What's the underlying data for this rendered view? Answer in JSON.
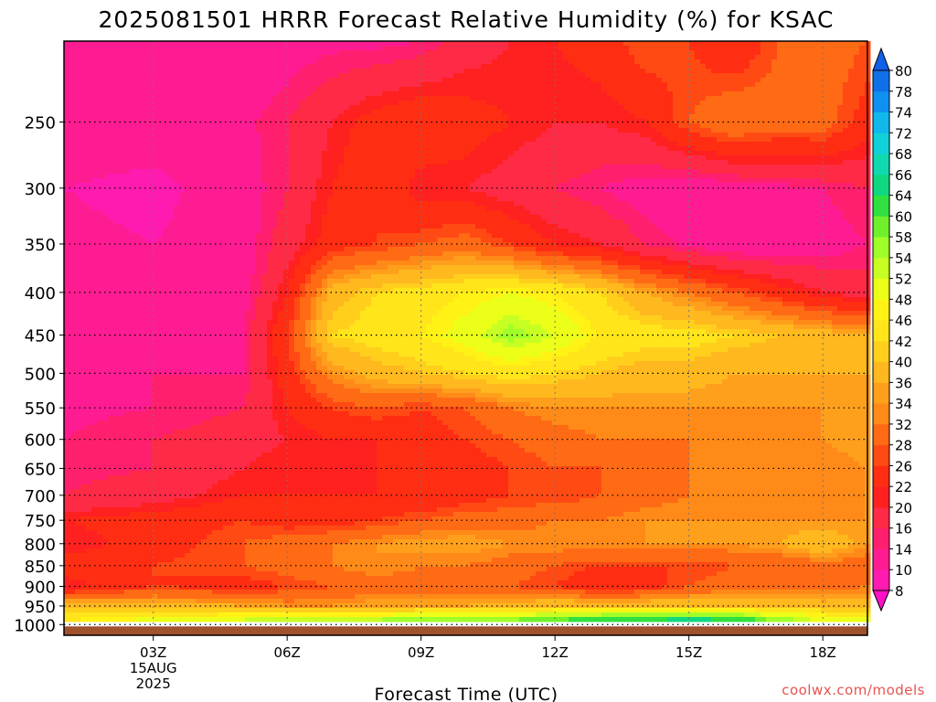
{
  "chart_data": {
    "type": "heatmap",
    "title": "2025081501 HRRR Forecast Relative Humidity (%) for KSAC",
    "xlabel": "Forecast Time (UTC)",
    "ylabel": "",
    "x_ticks": [
      "03Z",
      "06Z",
      "09Z",
      "12Z",
      "15Z",
      "18Z"
    ],
    "x_tick_hours": [
      3,
      6,
      9,
      12,
      15,
      18
    ],
    "x_start_label": [
      "15AUG",
      "2025"
    ],
    "xlim_hours": [
      1,
      19
    ],
    "y_ticks": [
      250,
      300,
      350,
      400,
      450,
      500,
      550,
      600,
      650,
      700,
      750,
      800,
      850,
      900,
      950,
      1000
    ],
    "y_scale": "log-pressure",
    "ylim_hPa": [
      1030,
      200
    ],
    "grid": true,
    "colorbar": {
      "labels": [
        8,
        10,
        14,
        16,
        20,
        22,
        26,
        28,
        32,
        34,
        36,
        40,
        42,
        46,
        48,
        52,
        54,
        58,
        60,
        64,
        66,
        68,
        72,
        74,
        78,
        80
      ],
      "colors": [
        "#ff1ab0",
        "#ff1c92",
        "#ff1f6e",
        "#ff2a45",
        "#ff2020",
        "#ff2d12",
        "#ff4a14",
        "#ff6a14",
        "#ff8a18",
        "#ffa01c",
        "#ffb81e",
        "#ffcf1c",
        "#ffe51a",
        "#fff214",
        "#ecff18",
        "#c8ff22",
        "#a0ff28",
        "#70f02c",
        "#30e040",
        "#10d880",
        "#10d8b0",
        "#10d0d8",
        "#10b8ec",
        "#1090f0",
        "#1070e8"
      ]
    },
    "field_description": "relative humidity (%) by pressure level and forecast hour",
    "rh_matrix": {
      "hours": [
        1,
        3,
        5,
        6,
        7,
        8,
        9,
        10,
        11,
        12,
        13,
        14,
        15,
        16,
        17,
        18,
        19
      ],
      "levels_hPa": [
        200,
        250,
        300,
        350,
        400,
        450,
        500,
        550,
        600,
        650,
        700,
        750,
        800,
        850,
        900,
        950,
        990,
        1000
      ],
      "values": [
        [
          11,
          11,
          11,
          12,
          13,
          13,
          14,
          18,
          20,
          22,
          24,
          28,
          26,
          22,
          28,
          30,
          28
        ],
        [
          12,
          12,
          13,
          16,
          20,
          24,
          26,
          24,
          22,
          20,
          20,
          22,
          28,
          32,
          30,
          30,
          24
        ],
        [
          10,
          9,
          12,
          16,
          22,
          26,
          20,
          20,
          18,
          16,
          14,
          12,
          11,
          12,
          13,
          14,
          16
        ],
        [
          11,
          10,
          12,
          18,
          24,
          26,
          28,
          30,
          26,
          22,
          20,
          16,
          13,
          11,
          11,
          12,
          14
        ],
        [
          11,
          12,
          12,
          22,
          38,
          42,
          44,
          46,
          48,
          46,
          42,
          36,
          32,
          28,
          24,
          20,
          18
        ],
        [
          11,
          12,
          14,
          26,
          42,
          44,
          46,
          50,
          56,
          52,
          46,
          44,
          44,
          42,
          40,
          38,
          36
        ],
        [
          12,
          14,
          14,
          24,
          34,
          38,
          40,
          42,
          44,
          42,
          40,
          38,
          38,
          36,
          36,
          36,
          36
        ],
        [
          13,
          14,
          16,
          22,
          26,
          28,
          26,
          28,
          32,
          34,
          34,
          34,
          34,
          34,
          34,
          34,
          34
        ],
        [
          14,
          16,
          18,
          20,
          22,
          22,
          24,
          26,
          28,
          30,
          32,
          32,
          32,
          32,
          32,
          34,
          36
        ],
        [
          15,
          16,
          20,
          22,
          20,
          22,
          24,
          24,
          26,
          28,
          28,
          30,
          32,
          32,
          32,
          32,
          34
        ],
        [
          16,
          18,
          22,
          22,
          22,
          22,
          22,
          24,
          26,
          26,
          28,
          30,
          32,
          32,
          32,
          32,
          34
        ],
        [
          22,
          24,
          26,
          24,
          24,
          26,
          28,
          30,
          30,
          32,
          32,
          34,
          34,
          34,
          34,
          34,
          34
        ],
        [
          20,
          24,
          28,
          30,
          32,
          34,
          36,
          36,
          34,
          34,
          34,
          34,
          34,
          34,
          36,
          40,
          34
        ],
        [
          24,
          26,
          28,
          30,
          32,
          34,
          32,
          32,
          30,
          28,
          26,
          26,
          26,
          28,
          28,
          30,
          30
        ],
        [
          20,
          26,
          24,
          26,
          28,
          30,
          30,
          30,
          28,
          26,
          22,
          24,
          28,
          30,
          30,
          30,
          32
        ],
        [
          40,
          38,
          36,
          34,
          34,
          36,
          36,
          36,
          38,
          40,
          40,
          40,
          40,
          40,
          40,
          38,
          38
        ],
        [
          46,
          50,
          54,
          56,
          56,
          56,
          58,
          58,
          60,
          62,
          64,
          66,
          68,
          66,
          58,
          52,
          50
        ],
        [
          48,
          52,
          56,
          58,
          58,
          58,
          60,
          60,
          62,
          64,
          66,
          70,
          70,
          66,
          58,
          52,
          50
        ]
      ]
    }
  },
  "credit": "coolwx.com/models"
}
